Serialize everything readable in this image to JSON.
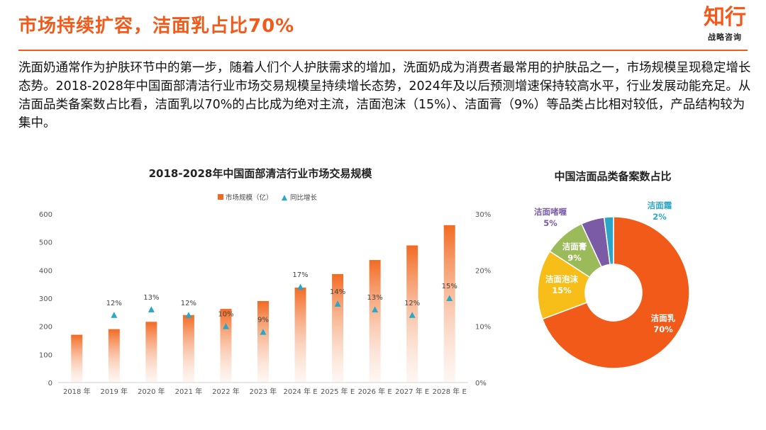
{
  "header": {
    "title": "市场持续扩容，洁面乳占比70%",
    "brand_name": "知行",
    "brand_sub": "战略咨询"
  },
  "intro_text": "洗面奶通常作为护肤环节中的第一步，随着人们个人护肤需求的增加，洗面奶成为消费者最常用的护肤品之一，市场规模呈现稳定增长态势。2018-2028年中国面部清洁行业市场交易规模呈持续增长态势，2024年及以后预测增速保持较高水平，行业发展动能充足。从洁面品类备案数占比看，洁面乳以70%的占比成为绝对主流，洁面泡沫（15%）、洁面膏（9%）等品类占比相对较低，产品结构较为集中。",
  "colors": {
    "accent": "#f25a1a",
    "bar_top": "#f26a22",
    "marker": "#2aa6c8",
    "pie": [
      "#f25a1a",
      "#f7be1a",
      "#9bba59",
      "#7b5aa6",
      "#2aa6c8"
    ]
  },
  "chart_data": [
    {
      "type": "bar",
      "title": "2018-2028年中国面部清洁行业市场交易规模",
      "categories": [
        "2018 年",
        "2019 年",
        "2020 年",
        "2021 年",
        "2022 年",
        "2023 年",
        "2024 年 E",
        "2025 年 E",
        "2026 年 E",
        "2027 年 E",
        "2028 年 E"
      ],
      "series": [
        {
          "name": "市场规模（亿）",
          "type": "bar",
          "axis": "left",
          "values": [
            170,
            190,
            216,
            240,
            262,
            290,
            338,
            386,
            436,
            488,
            560
          ]
        },
        {
          "name": "同比增长",
          "type": "marker",
          "axis": "right",
          "values": [
            null,
            12,
            13,
            12,
            10,
            9,
            17,
            14,
            13,
            12,
            15
          ],
          "labels": [
            "",
            "12%",
            "13%",
            "12%",
            "10%",
            "9%",
            "17%",
            "14%",
            "13%",
            "12%",
            "15%"
          ]
        }
      ],
      "ylim": [
        0,
        600
      ],
      "yticks": [
        0,
        100,
        200,
        300,
        400,
        500,
        600
      ],
      "y2lim": [
        0,
        30
      ],
      "y2ticks": [
        "0%",
        "10%",
        "20%",
        "30%"
      ],
      "legend": "top-center"
    },
    {
      "type": "pie",
      "title": "中国洁面品类备案数占比",
      "slices": [
        {
          "label": "洁面乳",
          "value": 70,
          "text": "70%"
        },
        {
          "label": "洁面泡沫",
          "value": 15,
          "text": "15%"
        },
        {
          "label": "洁面膏",
          "value": 9,
          "text": "9%"
        },
        {
          "label": "洁面啫喱",
          "value": 5,
          "text": "5%"
        },
        {
          "label": "洁面霜",
          "value": 2,
          "text": "2%"
        }
      ]
    }
  ]
}
